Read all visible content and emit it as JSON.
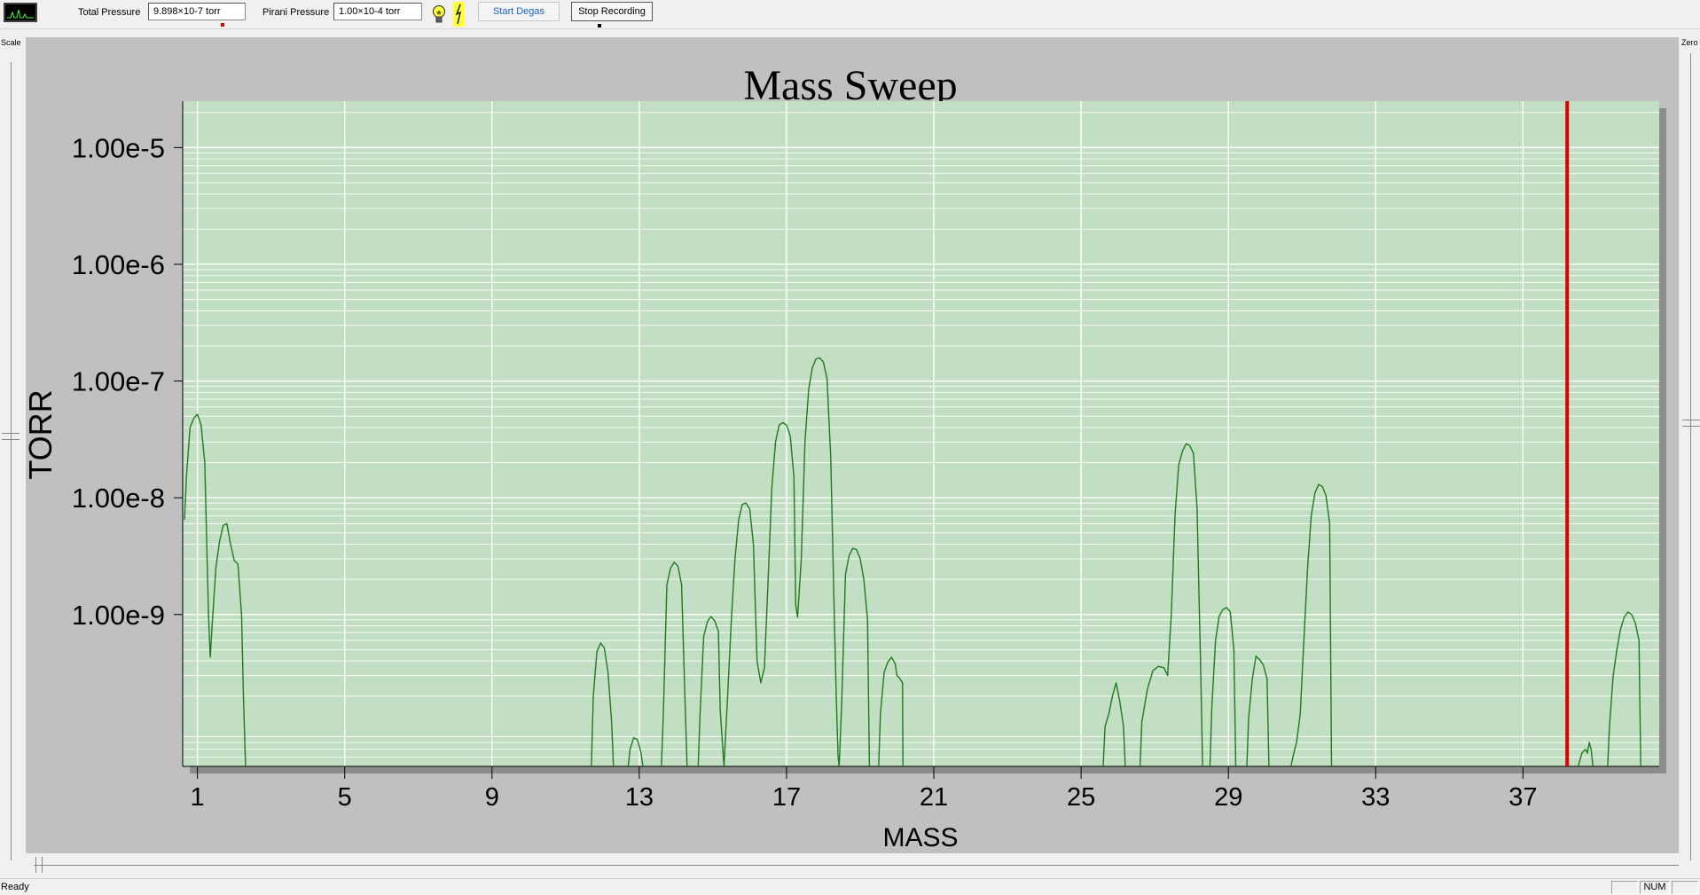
{
  "toolbar": {
    "total_pressure_label": "Total Pressure",
    "total_pressure_value": "9.898×10-7 torr",
    "pirani_pressure_label": "Pirani Pressure",
    "pirani_pressure_value": "1.00×10-4 torr",
    "start_degas_label": "Start Degas",
    "stop_recording_label": "Stop Recording",
    "icons": [
      "spectrum-icon",
      "filament-lamp-icon",
      "emission-icon"
    ]
  },
  "side": {
    "scale_label": "Scale",
    "zero_label": "Zero"
  },
  "status": {
    "text": "Ready",
    "num_indicator": "NUM"
  },
  "colors": {
    "plot_background": "#c3dfc3",
    "panel_background": "#c0c0c0",
    "trace": "#1f7a1f",
    "marker": "#e00000",
    "grid": "#ffffff"
  },
  "chart_data": {
    "type": "line",
    "title": "Mass Sweep",
    "xlabel": "MASS",
    "ylabel": "TORR",
    "y_scale": "log",
    "xlim": [
      0.6,
      40.7
    ],
    "ylim": [
      5e-11,
      2.5e-05
    ],
    "x_ticks": [
      1,
      5,
      9,
      13,
      17,
      21,
      25,
      29,
      33,
      37
    ],
    "y_ticks": [
      1e-05,
      1e-06,
      1e-07,
      1e-08,
      1e-09
    ],
    "y_tick_labels": [
      "1.00e-5",
      "1.00e-6",
      "1.00e-7",
      "1.00e-8",
      "1.00e-9"
    ],
    "grid": true,
    "marker_line_mass": 38.2,
    "series": [
      {
        "x": [
          0.65,
          0.7,
          0.8,
          0.9,
          1.0,
          1.1,
          1.2,
          1.3,
          1.35,
          1.4,
          1.5,
          1.6,
          1.7,
          1.8,
          1.9,
          2.0,
          2.1,
          2.2,
          2.25,
          2.3,
          2.31
        ],
        "y": [
          6.5e-09,
          1.5e-08,
          4e-08,
          4.8e-08,
          5.2e-08,
          4.2e-08,
          2e-08,
          1e-09,
          4.3e-10,
          8e-10,
          2.5e-09,
          4.2e-09,
          5.8e-09,
          6e-09,
          4e-09,
          2.9e-09,
          2.7e-09,
          1e-09,
          2e-10,
          6e-11,
          5e-11
        ]
      },
      {
        "x": [
          11.7,
          11.75,
          11.85,
          11.95,
          12.05,
          12.15,
          12.25,
          12.3
        ],
        "y": [
          5e-11,
          2e-10,
          4.8e-10,
          5.7e-10,
          5.2e-10,
          3.2e-10,
          1.2e-10,
          5e-11
        ]
      },
      {
        "x": [
          12.7,
          12.75,
          12.85,
          12.95,
          13.05,
          13.1
        ],
        "y": [
          5e-11,
          7e-11,
          8.8e-11,
          8.5e-11,
          6.5e-11,
          5e-11
        ]
      },
      {
        "x": [
          13.6,
          13.65,
          13.75,
          13.85,
          13.95,
          14.05,
          14.15,
          14.25,
          14.3
        ],
        "y": [
          5e-11,
          1.3e-10,
          1.8e-09,
          2.5e-09,
          2.8e-09,
          2.6e-09,
          1.8e-09,
          1.5e-10,
          5e-11
        ]
      },
      {
        "x": [
          14.6,
          14.65,
          14.75,
          14.85,
          14.95,
          15.05,
          15.15,
          15.2,
          15.3
        ],
        "y": [
          5e-11,
          1.4e-10,
          6.5e-10,
          8.7e-10,
          9.6e-10,
          8.8e-10,
          7.2e-10,
          1.5e-10,
          5e-11
        ]
      },
      {
        "x": [
          15.3,
          15.4,
          15.5,
          15.6,
          15.7,
          15.8,
          15.9,
          16.0,
          16.1,
          16.2,
          16.3,
          16.4,
          16.5,
          16.6,
          16.7,
          16.8,
          16.9,
          17.0,
          17.1,
          17.2,
          17.25,
          17.3,
          17.4,
          17.5,
          17.6,
          17.7,
          17.8,
          17.9,
          18.0,
          18.1,
          18.2,
          18.3,
          18.35,
          18.4,
          18.43
        ],
        "y": [
          5e-11,
          2e-10,
          9e-10,
          3e-09,
          6.5e-09,
          8.8e-09,
          9e-09,
          8e-09,
          4e-09,
          4e-10,
          2.6e-10,
          3.5e-10,
          2e-09,
          1.2e-08,
          3e-08,
          4.2e-08,
          4.4e-08,
          4.2e-08,
          3.4e-08,
          1.5e-08,
          1.2e-09,
          9.5e-10,
          3e-09,
          3e-08,
          8.5e-08,
          1.3e-07,
          1.55e-07,
          1.58e-07,
          1.45e-07,
          1.05e-07,
          2.2e-08,
          9e-10,
          2e-10,
          6e-11,
          5e-11
        ]
      },
      {
        "x": [
          18.43,
          18.5,
          18.6,
          18.7,
          18.8,
          18.9,
          19.0,
          19.1,
          19.2,
          19.25
        ],
        "y": [
          5e-11,
          1.8e-10,
          2.2e-09,
          3.2e-09,
          3.7e-09,
          3.6e-09,
          3e-09,
          2e-09,
          9e-10,
          5e-11
        ]
      },
      {
        "x": [
          19.5,
          19.55,
          19.65,
          19.75,
          19.85,
          19.95,
          20.0,
          20.05,
          20.15,
          20.16
        ],
        "y": [
          5e-11,
          1.4e-10,
          3.2e-10,
          3.9e-10,
          4.3e-10,
          3.8e-10,
          3e-10,
          2.9e-10,
          2.6e-10,
          5e-11
        ]
      },
      {
        "x": [
          25.6,
          25.65,
          25.75,
          25.85,
          25.95,
          26.05,
          26.15,
          26.2
        ],
        "y": [
          5e-11,
          1.1e-10,
          1.4e-10,
          2e-10,
          2.6e-10,
          1.8e-10,
          1.1e-10,
          5e-11
        ]
      },
      {
        "x": [
          26.6,
          26.65,
          26.8,
          26.95,
          27.1,
          27.25,
          27.35,
          27.45,
          27.55,
          27.65,
          27.75,
          27.85,
          27.95,
          28.05,
          28.15,
          28.25,
          28.3
        ],
        "y": [
          5e-11,
          1.2e-10,
          2.3e-10,
          3.3e-10,
          3.6e-10,
          3.5e-10,
          3e-10,
          1e-09,
          7e-09,
          1.9e-08,
          2.5e-08,
          2.9e-08,
          2.8e-08,
          2.4e-08,
          8e-09,
          3e-10,
          5e-11
        ]
      },
      {
        "x": [
          28.5,
          28.55,
          28.65,
          28.75,
          28.85,
          28.95,
          29.05,
          29.15,
          29.2
        ],
        "y": [
          5e-11,
          1.6e-10,
          6e-10,
          9.7e-10,
          1.1e-09,
          1.15e-09,
          1.05e-09,
          5e-10,
          5e-11
        ]
      },
      {
        "x": [
          29.5,
          29.55,
          29.65,
          29.75,
          29.85,
          29.95,
          30.05,
          30.1
        ],
        "y": [
          5e-11,
          1.3e-10,
          2.8e-10,
          4.4e-10,
          4.1e-10,
          3.7e-10,
          2.8e-10,
          5e-11
        ]
      },
      {
        "x": [
          30.7,
          30.75,
          30.85,
          30.95,
          31.05,
          31.15,
          31.25,
          31.35,
          31.45,
          31.55,
          31.65,
          31.75,
          31.8
        ],
        "y": [
          5e-11,
          6e-11,
          8e-11,
          1.4e-10,
          6e-10,
          2.5e-09,
          7e-09,
          1.1e-08,
          1.3e-08,
          1.25e-08,
          1.05e-08,
          6e-09,
          5e-11
        ]
      },
      {
        "x": [
          38.5,
          38.6,
          38.7,
          38.75,
          38.8,
          38.85,
          38.9
        ],
        "y": [
          5e-11,
          6.5e-11,
          7e-11,
          6.5e-11,
          8e-11,
          7e-11,
          5e-11
        ]
      },
      {
        "x": [
          39.3,
          39.35,
          39.45,
          39.55,
          39.65,
          39.75,
          39.85,
          39.95,
          40.05,
          40.15,
          40.2
        ],
        "y": [
          5e-11,
          1.1e-10,
          3e-10,
          5e-10,
          7.5e-10,
          9.5e-10,
          1.05e-09,
          1e-09,
          8.5e-10,
          6e-10,
          5e-11
        ]
      }
    ]
  }
}
